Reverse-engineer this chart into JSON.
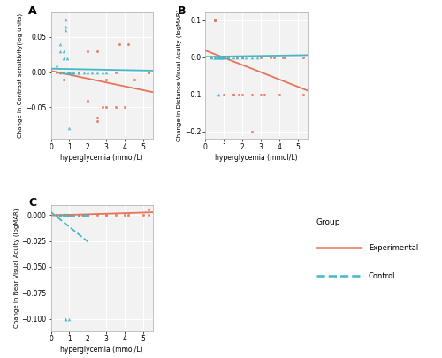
{
  "panel_A": {
    "exp_x": [
      0.3,
      0.5,
      0.7,
      0.7,
      1.0,
      1.0,
      1.5,
      1.5,
      2.0,
      2.0,
      2.5,
      2.5,
      2.5,
      2.8,
      3.0,
      3.0,
      3.5,
      3.5,
      3.7,
      4.0,
      4.2,
      4.5,
      5.3,
      5.3
    ],
    "exp_y": [
      0.0,
      0.0,
      -0.01,
      0.0,
      0.0,
      0.0,
      0.0,
      0.0,
      0.03,
      -0.04,
      0.03,
      -0.065,
      -0.07,
      -0.05,
      -0.05,
      -0.01,
      0.0,
      -0.05,
      0.04,
      -0.05,
      0.04,
      -0.01,
      0.0,
      0.0
    ],
    "ctrl_x": [
      0.3,
      0.5,
      0.5,
      0.5,
      0.7,
      0.7,
      0.7,
      0.8,
      0.8,
      0.8,
      0.9,
      0.9,
      1.0,
      1.0,
      1.0,
      1.1,
      1.1,
      1.2,
      1.2,
      1.5,
      1.5,
      1.8,
      2.0,
      2.2,
      2.5,
      2.8,
      3.0
    ],
    "ctrl_y": [
      0.01,
      0.04,
      0.03,
      0.0,
      0.03,
      0.02,
      0.0,
      0.06,
      0.065,
      0.075,
      0.02,
      0.0,
      0.0,
      0.0,
      -0.08,
      0.0,
      0.0,
      0.0,
      0.0,
      0.0,
      0.0,
      0.0,
      0.0,
      0.0,
      0.0,
      0.0,
      0.0
    ],
    "exp_slope": -0.0055,
    "exp_intercept": 0.002,
    "ctrl_slope": -0.0005,
    "ctrl_intercept": 0.005,
    "ylabel": "Change in Contrast sensitivity(log units)",
    "ylim": [
      -0.095,
      0.085
    ],
    "yticks": [
      -0.05,
      0.0,
      0.05
    ]
  },
  "panel_B": {
    "exp_x": [
      0.3,
      0.5,
      0.5,
      0.7,
      0.7,
      1.0,
      1.0,
      1.2,
      1.5,
      1.5,
      1.7,
      1.8,
      2.0,
      2.0,
      2.5,
      2.5,
      3.0,
      3.0,
      3.2,
      3.5,
      3.7,
      4.0,
      4.2,
      4.3,
      5.3,
      5.3
    ],
    "exp_y": [
      0.0,
      0.1,
      0.1,
      0.0,
      0.0,
      0.0,
      -0.1,
      0.0,
      -0.1,
      -0.1,
      0.0,
      -0.1,
      0.0,
      -0.1,
      -0.2,
      -0.1,
      -0.1,
      0.0,
      -0.1,
      0.0,
      0.0,
      -0.1,
      0.0,
      0.0,
      -0.1,
      0.0
    ],
    "ctrl_x": [
      0.3,
      0.5,
      0.5,
      0.5,
      0.7,
      0.7,
      0.7,
      0.8,
      0.8,
      0.9,
      0.9,
      1.0,
      1.0,
      1.2,
      1.5,
      1.7,
      2.0,
      2.2,
      2.5,
      2.8
    ],
    "ctrl_y": [
      0.0,
      0.0,
      0.0,
      0.0,
      0.0,
      0.0,
      -0.1,
      0.0,
      0.0,
      0.0,
      0.0,
      0.0,
      0.0,
      0.0,
      0.0,
      0.0,
      0.0,
      0.0,
      0.0,
      0.0
    ],
    "exp_slope": -0.0195,
    "exp_intercept": 0.018,
    "ctrl_slope": 0.0008,
    "ctrl_intercept": 0.001,
    "ylabel": "Change in Distance Visual Acuity (logMAR)",
    "ylim": [
      -0.22,
      0.12
    ],
    "yticks": [
      -0.2,
      -0.1,
      0.0,
      0.1
    ]
  },
  "panel_C": {
    "exp_x": [
      0.3,
      0.3,
      0.5,
      0.5,
      0.7,
      0.7,
      0.7,
      0.8,
      0.9,
      1.0,
      1.0,
      1.1,
      1.1,
      1.2,
      1.5,
      1.5,
      1.7,
      1.8,
      2.0,
      2.0,
      2.5,
      3.0,
      3.0,
      3.5,
      4.0,
      4.2,
      5.0,
      5.3,
      5.3
    ],
    "exp_y": [
      0.0,
      0.0,
      0.0,
      0.0,
      0.0,
      0.0,
      0.0,
      0.0,
      0.0,
      0.0,
      0.0,
      0.0,
      0.0,
      0.0,
      0.0,
      0.0,
      0.0,
      0.0,
      0.0,
      0.0,
      0.0,
      0.0,
      0.0,
      0.0,
      0.0,
      0.0,
      0.0,
      0.0,
      0.005
    ],
    "ctrl_x": [
      0.3,
      0.5,
      0.5,
      0.5,
      0.7,
      0.7,
      0.7,
      0.8,
      0.8,
      0.9,
      1.0,
      1.0,
      1.1,
      1.1,
      1.2,
      1.5,
      1.8,
      1.9,
      2.0
    ],
    "ctrl_y": [
      0.0,
      0.0,
      0.0,
      0.0,
      0.0,
      0.0,
      0.0,
      -0.1,
      -0.1,
      0.0,
      0.0,
      -0.1,
      0.0,
      0.0,
      0.0,
      0.0,
      0.0,
      0.0,
      0.0
    ],
    "exp_slope": 0.00055,
    "exp_intercept": -0.0003,
    "ctrl_slope": -0.0143,
    "ctrl_intercept": 0.003,
    "ctrl_line_xmax": 2.0,
    "ylabel": "Change in Near Visual Acuity (logMAR)",
    "ylim": [
      -0.112,
      0.01
    ],
    "yticks": [
      0.0,
      -0.025,
      -0.05,
      -0.075,
      -0.1
    ]
  },
  "exp_color": "#E8735A",
  "ctrl_color": "#44B8C8",
  "xlim": [
    0.0,
    5.5
  ],
  "xticks": [
    0,
    1,
    2,
    3,
    4,
    5
  ],
  "xlabel": "hyperglycemia (mmol/L)",
  "bg_color": "#F2F2F2",
  "grid_color": "white",
  "legend_exp_label": "Experimental",
  "legend_ctrl_label": "Control"
}
